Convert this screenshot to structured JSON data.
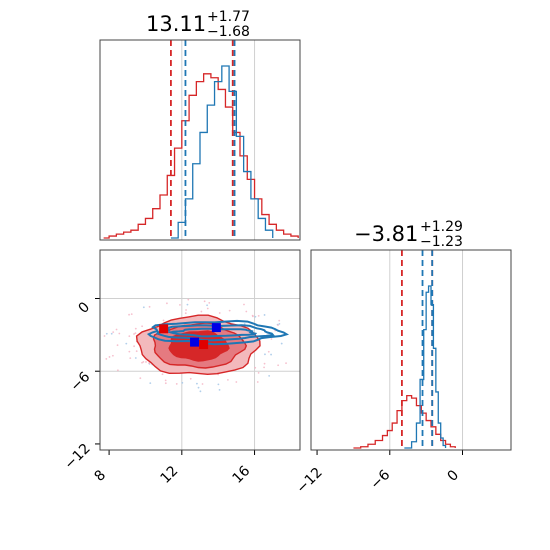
{
  "chart_data": {
    "type": "corner",
    "parameters": [
      {
        "title_value": "13.11",
        "title_plus": "+1.77",
        "title_minus": "−1.68",
        "range": [
          7.5,
          18.5
        ],
        "ticks": [
          "8",
          "12",
          "16"
        ]
      },
      {
        "title_value": "−3.81",
        "title_plus": "+1.29",
        "title_minus": "−1.23",
        "range": [
          -12.5,
          4
        ],
        "ticks": [
          "−12",
          "−6",
          "0"
        ]
      }
    ],
    "grid": true,
    "series": [
      {
        "color": "#d62728",
        "quantiles_param1": [
          11.4,
          14.8
        ],
        "quantiles_param2": [
          -5.0,
          -2.5
        ],
        "hist_param1": [
          [
            7.7,
            0
          ],
          [
            8.0,
            1
          ],
          [
            8.4,
            2
          ],
          [
            8.8,
            3
          ],
          [
            9.2,
            4
          ],
          [
            9.6,
            7
          ],
          [
            10.0,
            10
          ],
          [
            10.4,
            15
          ],
          [
            10.8,
            22
          ],
          [
            11.2,
            32
          ],
          [
            11.6,
            46
          ],
          [
            12.0,
            60
          ],
          [
            12.4,
            73
          ],
          [
            12.8,
            80
          ],
          [
            13.2,
            84
          ],
          [
            13.6,
            82
          ],
          [
            14.0,
            76
          ],
          [
            14.4,
            67
          ],
          [
            14.8,
            54
          ],
          [
            15.2,
            42
          ],
          [
            15.6,
            30
          ],
          [
            16.0,
            20
          ],
          [
            16.4,
            12
          ],
          [
            16.8,
            7
          ],
          [
            17.2,
            4
          ],
          [
            17.6,
            2
          ],
          [
            18.0,
            1
          ],
          [
            18.4,
            0
          ]
        ],
        "hist_param2": [
          [
            -9.0,
            0
          ],
          [
            -8.4,
            1
          ],
          [
            -7.8,
            3
          ],
          [
            -7.2,
            6
          ],
          [
            -6.6,
            10
          ],
          [
            -6.2,
            14
          ],
          [
            -5.8,
            20
          ],
          [
            -5.4,
            30
          ],
          [
            -5.0,
            38
          ],
          [
            -4.6,
            42
          ],
          [
            -4.2,
            40
          ],
          [
            -3.8,
            34
          ],
          [
            -3.4,
            28
          ],
          [
            -3.0,
            22
          ],
          [
            -2.6,
            17
          ],
          [
            -2.2,
            11
          ],
          [
            -1.8,
            6
          ],
          [
            -1.4,
            3
          ],
          [
            -1.0,
            1
          ],
          [
            -0.6,
            0
          ]
        ],
        "contour_center": [
          12.9,
          -3.9
        ],
        "contour_radii": [
          [
            3.3,
            2.4
          ],
          [
            2.5,
            1.8
          ],
          [
            1.6,
            1.2
          ]
        ],
        "markers": [
          [
            11.0,
            -2.5
          ],
          [
            13.2,
            -3.8
          ]
        ]
      },
      {
        "color": "#1f77b4",
        "quantiles_param1": [
          12.2,
          14.9
        ],
        "quantiles_param2": [
          -3.3,
          -2.5
        ],
        "hist_param1": [
          [
            11.4,
            0
          ],
          [
            11.8,
            8
          ],
          [
            12.2,
            20
          ],
          [
            12.6,
            38
          ],
          [
            13.0,
            54
          ],
          [
            13.4,
            68
          ],
          [
            13.8,
            80
          ],
          [
            14.2,
            88
          ],
          [
            14.6,
            75
          ],
          [
            15.0,
            52
          ],
          [
            15.4,
            34
          ],
          [
            15.8,
            20
          ],
          [
            16.2,
            10
          ],
          [
            16.6,
            4
          ],
          [
            17.0,
            0
          ]
        ],
        "hist_param2": [
          [
            -4.8,
            0
          ],
          [
            -4.2,
            5
          ],
          [
            -3.8,
            20
          ],
          [
            -3.5,
            55
          ],
          [
            -3.2,
            95
          ],
          [
            -3.0,
            125
          ],
          [
            -2.8,
            130
          ],
          [
            -2.6,
            115
          ],
          [
            -2.4,
            80
          ],
          [
            -2.2,
            45
          ],
          [
            -2.0,
            20
          ],
          [
            -1.8,
            8
          ],
          [
            -1.6,
            2
          ],
          [
            -1.4,
            0
          ]
        ],
        "contour_center": [
          13.8,
          -2.8
        ],
        "contour_radii": [
          [
            3.6,
            0.9
          ],
          [
            3.0,
            0.6
          ],
          [
            2.2,
            0.3
          ]
        ],
        "markers": [
          [
            13.9,
            -2.4
          ],
          [
            12.7,
            -3.6
          ]
        ]
      }
    ]
  }
}
